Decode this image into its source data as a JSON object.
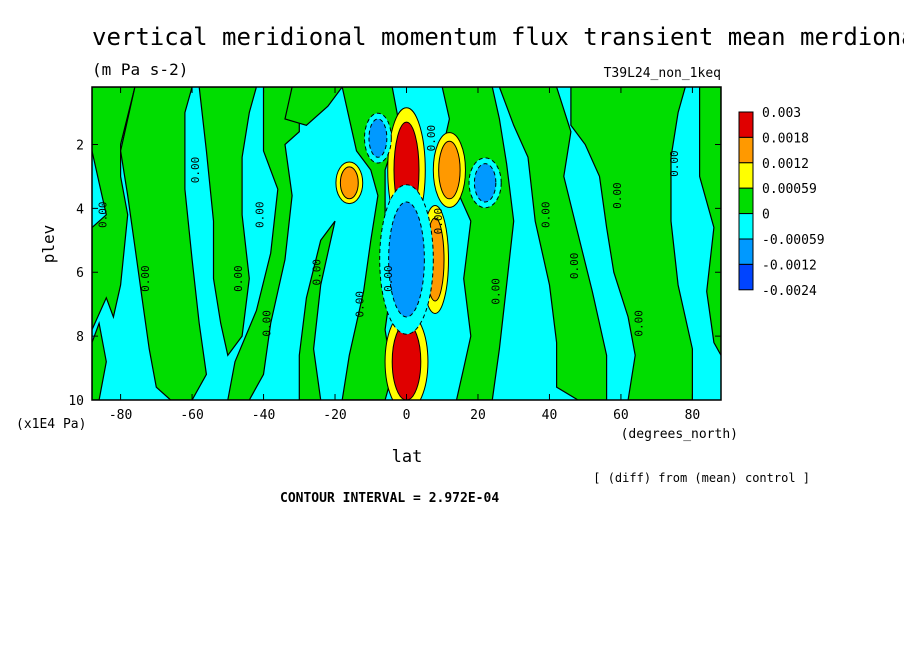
{
  "chart_data": {
    "type": "heatmap",
    "title": "vertical meridional momentum flux transient mean merdional",
    "units": "(m Pa s-2)",
    "dataset": "T39L24_non_1keq",
    "xlabel": "lat",
    "x_units": "(degrees_north)",
    "ylabel": "plev",
    "y_units": "(x1E4 Pa)",
    "xlim": [
      -88,
      88
    ],
    "ylim": [
      10,
      0.2
    ],
    "x_ticks": [
      "-80",
      "-60",
      "-40",
      "-20",
      "0",
      "20",
      "40",
      "60",
      "80"
    ],
    "y_ticks": [
      "2",
      "4",
      "6",
      "8",
      "10"
    ],
    "contour_interval_text": "CONTOUR INTERVAL = 2.972E-04",
    "note": "[ (diff) from (mean) control ]",
    "contour_label": "0.00",
    "legend": {
      "levels": [
        "0.003",
        "0.0018",
        "0.0012",
        "0.00059",
        "0",
        "-0.00059",
        "-0.0012",
        "-0.0024"
      ],
      "colors": [
        "#e00000",
        "#ff9900",
        "#ffff00",
        "#00dd00",
        "#00ffff",
        "#0099ff",
        "#0044ff"
      ]
    },
    "features": [
      {
        "lat": 0,
        "plev": 2.8,
        "value": 0.003
      },
      {
        "lat": 8,
        "plev": 5.6,
        "value": 0.0012
      },
      {
        "lat": 12,
        "plev": 2.8,
        "value": 0.0012
      },
      {
        "lat": -16,
        "plev": 3.2,
        "value": 0.0012
      },
      {
        "lat": 0,
        "plev": 8.8,
        "value": 0.0018
      },
      {
        "lat": -8,
        "plev": 1.8,
        "value": -0.0012
      },
      {
        "lat": 0,
        "plev": 5.6,
        "value": -0.0012
      },
      {
        "lat": 22,
        "plev": 3.2,
        "value": -0.0012
      }
    ]
  }
}
